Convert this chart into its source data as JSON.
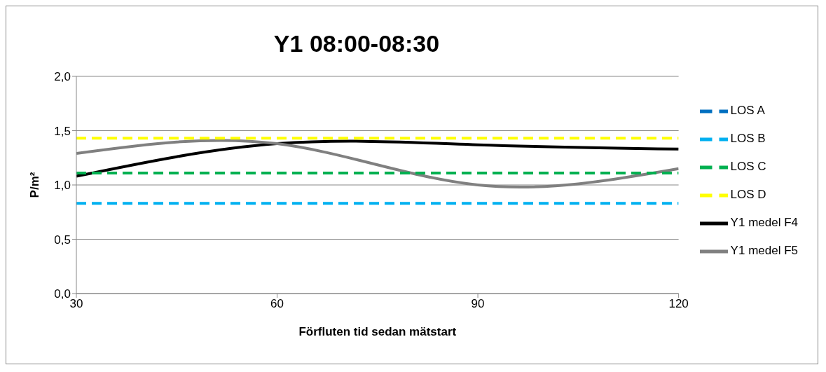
{
  "chart_data": {
    "type": "line",
    "title": "Y1 08:00-08:30",
    "xlabel": "Förfluten tid sedan mätstart",
    "ylabel": "P/m²",
    "x": [
      30,
      60,
      90,
      120
    ],
    "series": [
      {
        "name": "Y1 medel F4",
        "color": "#000000",
        "values": [
          1.08,
          1.38,
          1.37,
          1.33
        ],
        "line_style": "solid"
      },
      {
        "name": "Y1 medel F5",
        "color": "#808080",
        "values": [
          1.29,
          1.38,
          1.0,
          1.15
        ],
        "line_style": "solid"
      },
      {
        "name": "LOS A",
        "color": "#0070c0",
        "values": [
          null,
          null,
          null,
          null
        ],
        "line_style": "dashed"
      },
      {
        "name": "LOS B",
        "color": "#00b0f0",
        "values": [
          0.83,
          0.83,
          0.83,
          0.83
        ],
        "line_style": "dashed"
      },
      {
        "name": "LOS C",
        "color": "#00b050",
        "values": [
          1.11,
          1.11,
          1.11,
          1.11
        ],
        "line_style": "dashed"
      },
      {
        "name": "LOS D",
        "color": "#ffff00",
        "values": [
          1.43,
          1.43,
          1.43,
          1.43
        ],
        "line_style": "dashed"
      }
    ],
    "xlim": [
      30,
      120
    ],
    "xticks": [
      30,
      60,
      90,
      120
    ],
    "ylim": [
      0,
      2
    ],
    "yticks": [
      {
        "value": 0,
        "label": "0,0"
      },
      {
        "value": 0.5,
        "label": "0,5"
      },
      {
        "value": 1,
        "label": "1,0"
      },
      {
        "value": 1.5,
        "label": "1,5"
      },
      {
        "value": 2,
        "label": "2,0"
      }
    ],
    "grid": "y",
    "legend": "right",
    "marker": "none"
  }
}
